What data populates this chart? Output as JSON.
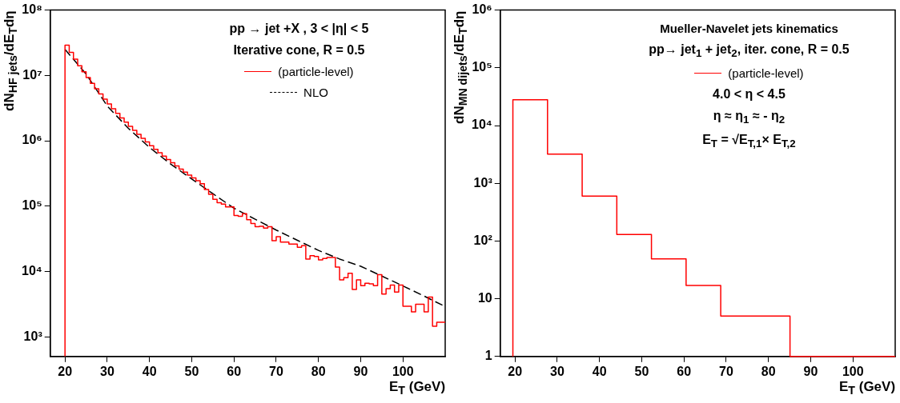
{
  "chart_data": [
    {
      "type": "histogram",
      "xlabel": "E$_{T}$ (GeV)",
      "ylabel": "dN$_{HF jets}$/dE$_{T}$dη",
      "annotations": [
        "pp → jet +X , 3 < |η| < 5",
        "Iterative cone, R = 0.5"
      ],
      "log": "y",
      "legend": "top right",
      "xlim": [
        16.5,
        110
      ],
      "xticks": [
        20,
        30,
        40,
        50,
        60,
        70,
        80,
        90,
        100
      ],
      "ylim": [
        500,
        100000000
      ],
      "yticks": [
        {
          "value": 1000,
          "label": "10³"
        },
        {
          "value": 10000,
          "label": "10⁴"
        },
        {
          "value": 100000,
          "label": "10⁵"
        },
        {
          "value": 1000000,
          "label": "10⁶"
        },
        {
          "value": 10000000,
          "label": "10⁷"
        },
        {
          "value": 100000000,
          "label": "10⁸"
        }
      ],
      "series": [
        {
          "name": "(particle-level)",
          "color": "#ff0000",
          "bins": [
            20,
            21,
            22,
            23,
            24,
            25,
            26,
            27,
            28,
            29,
            30,
            31,
            32,
            33,
            34,
            35,
            36,
            37,
            38,
            39,
            40,
            41,
            42,
            43,
            44,
            45,
            46,
            47,
            48,
            49,
            50,
            51,
            52,
            53,
            54,
            55,
            56,
            57,
            58,
            59,
            60,
            61,
            62,
            63,
            64,
            65,
            66,
            67,
            68,
            69,
            70,
            71,
            72,
            73,
            74,
            75,
            76,
            77,
            78,
            79,
            80,
            81,
            82,
            83,
            84,
            85,
            86,
            87,
            88,
            89,
            90,
            91,
            92,
            93,
            94,
            95,
            96,
            97,
            98,
            99,
            100,
            101,
            102,
            103,
            104,
            105,
            106,
            107,
            108,
            109,
            110
          ],
          "values": [
            29000000,
            22500000,
            17700000,
            14100000,
            11400000,
            9250000,
            7570000,
            6240000,
            5190000,
            4340000,
            3650000,
            3080000,
            2620000,
            2240000,
            1930000,
            1660000,
            1440000,
            1250000,
            1090000,
            957000,
            841000,
            741000,
            656000,
            582000,
            518000,
            461000,
            412000,
            369000,
            332000,
            299000,
            270000,
            244000,
            220000,
            180000,
            152000,
            127000,
            113000,
            107000,
            97500,
            97500,
            71900,
            69800,
            76400,
            62100,
            54100,
            48500,
            49000,
            46200,
            48500,
            29600,
            34000,
            28200,
            28200,
            26300,
            26300,
            23400,
            24800,
            15500,
            17400,
            17000,
            15000,
            15800,
            16400,
            16400,
            11700,
            7460,
            8020,
            9380,
            5310,
            7460,
            6080,
            6590,
            6460,
            6080,
            8930,
            4500,
            5460,
            6190,
            4840,
            6170,
            2940,
            2940,
            2410,
            3140,
            3140,
            2410,
            4070,
            1450,
            1670,
            1670
          ]
        },
        {
          "name": "NLO",
          "type": "line",
          "color": "#000000",
          "line_style": "dashed",
          "x": [
            20,
            25,
            30,
            35,
            40,
            45,
            50,
            55,
            60,
            65,
            70,
            75,
            80,
            85,
            90,
            95,
            100,
            105,
            110
          ],
          "values": [
            25000000,
            10500000,
            3400000,
            1550000,
            790000,
            440000,
            260000,
            155000,
            93000,
            63000,
            43000,
            30000,
            21000,
            15500,
            12000,
            8500,
            6000,
            4200,
            2900
          ]
        }
      ]
    },
    {
      "type": "step",
      "title": "Mueller-Navelet jets kinematics",
      "xlabel": "E$_{T}$ (GeV)",
      "ylabel": "dN$_{MN dijets}$/dE$_{T}$dη",
      "annotations": [
        "pp→ jet$_{1}$ + jet$_{2}$, iter. cone, R = 0.5",
        "4.0 < η < 4.5",
        "η ≈ η$_{1}$ ≈ - η$_{2}$",
        "E$_{T}$ = √E$_{T,1}$× E$_{T,2}$"
      ],
      "log": "y",
      "legend": "top right",
      "xlim": [
        16.5,
        110
      ],
      "xticks": [
        20,
        30,
        40,
        50,
        60,
        70,
        80,
        90,
        100
      ],
      "ylim": [
        1,
        1000000
      ],
      "yticks": [
        1,
        10,
        {
          "value": 100,
          "label": "10²"
        },
        {
          "value": 1000,
          "label": "10³"
        },
        {
          "value": 10000,
          "label": "10⁴"
        },
        {
          "value": 100000,
          "label": "10⁵"
        },
        {
          "value": 1000000,
          "label": "10⁶"
        }
      ],
      "series": [
        {
          "name": "(particle-level)",
          "color": "#ff0000",
          "x": [
            19.5,
            19.5,
            27.7,
            35.9,
            44.1,
            52.3,
            60.5,
            68.7,
            85.1,
            110
          ],
          "values": [
            1,
            28000,
            3200,
            600,
            130,
            49,
            17,
            5,
            1,
            1
          ]
        }
      ]
    }
  ]
}
